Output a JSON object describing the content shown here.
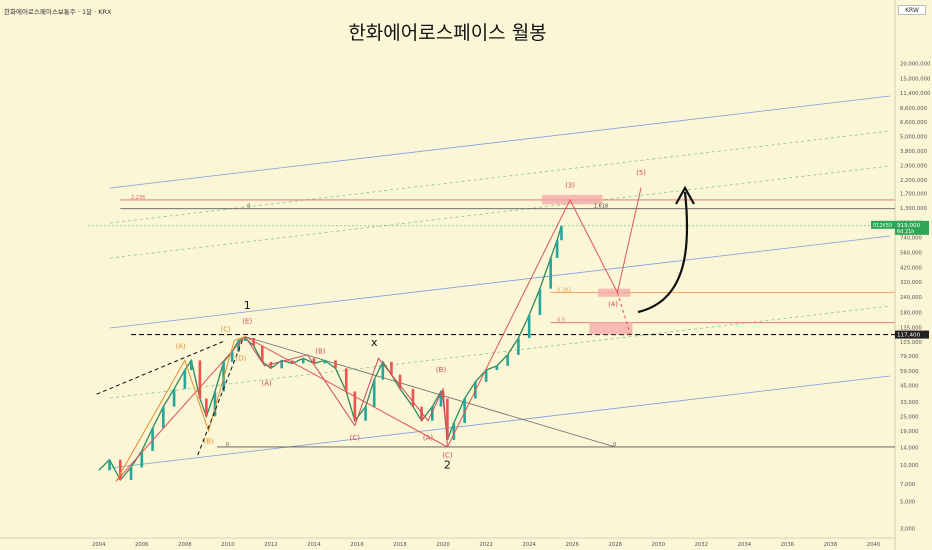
{
  "header": {
    "symbol": "한화에어로스페이스보통주 · 1달 · KRX",
    "title": "한화에어로스페이스 월봉",
    "currency": "KRW"
  },
  "price_tag": {
    "label": "012450",
    "price": "919,000",
    "countdown": "6d 21h"
  },
  "ref_tag": {
    "price": "117,400"
  },
  "chart_data": {
    "type": "line",
    "title": "한화에어로스페이스 월봉",
    "xlabel": "",
    "ylabel": "",
    "yscale": "log",
    "xlim": [
      2003.5,
      2041
    ],
    "ylim": [
      2500,
      60000000
    ],
    "x_ticks": [
      "2004",
      "2006",
      "2008",
      "2010",
      "2012",
      "2014",
      "2016",
      "2018",
      "2020",
      "2022",
      "2024",
      "2026",
      "2028",
      "2030",
      "2032",
      "2034",
      "2036",
      "2038",
      "2040"
    ],
    "y_ticks": [
      "20,000,000",
      "15,000,000",
      "11,400,000",
      "8,600,000",
      "6,600,000",
      "5,000,000",
      "3,800,000",
      "2,900,000",
      "2,200,000",
      "1,700,000",
      "1,300,000",
      "980,000",
      "740,000",
      "560,000",
      "420,000",
      "320,000",
      "240,000",
      "180,000",
      "135,000",
      "103,000",
      "79,000",
      "59,000",
      "45,000",
      "33,000",
      "25,000",
      "19,000",
      "14,000",
      "10,000",
      "7,000",
      "5,000",
      "3,000"
    ],
    "price_path": [
      [
        2004.0,
        9000
      ],
      [
        2004.5,
        11000
      ],
      [
        2005.0,
        7500
      ],
      [
        2005.5,
        9500
      ],
      [
        2006.0,
        13000
      ],
      [
        2006.5,
        20000
      ],
      [
        2007.0,
        30000
      ],
      [
        2007.5,
        42000
      ],
      [
        2008.0,
        60000
      ],
      [
        2008.3,
        72000
      ],
      [
        2008.7,
        35000
      ],
      [
        2009.0,
        25000
      ],
      [
        2009.4,
        40000
      ],
      [
        2009.8,
        70000
      ],
      [
        2010.2,
        85000
      ],
      [
        2010.5,
        105000
      ],
      [
        2010.8,
        110000
      ],
      [
        2011.2,
        95000
      ],
      [
        2011.6,
        70000
      ],
      [
        2012.0,
        62000
      ],
      [
        2012.5,
        72000
      ],
      [
        2013.0,
        68000
      ],
      [
        2013.5,
        75000
      ],
      [
        2014.0,
        68000
      ],
      [
        2014.5,
        72000
      ],
      [
        2015.0,
        62000
      ],
      [
        2015.5,
        40000
      ],
      [
        2015.9,
        23000
      ],
      [
        2016.4,
        30000
      ],
      [
        2016.8,
        50000
      ],
      [
        2017.2,
        70000
      ],
      [
        2017.6,
        55000
      ],
      [
        2018.0,
        42000
      ],
      [
        2018.6,
        30000
      ],
      [
        2019.0,
        23000
      ],
      [
        2019.5,
        30000
      ],
      [
        2019.9,
        40000
      ],
      [
        2020.0,
        35000
      ],
      [
        2020.2,
        16000
      ],
      [
        2020.5,
        22000
      ],
      [
        2021.0,
        35000
      ],
      [
        2021.5,
        48000
      ],
      [
        2022.0,
        60000
      ],
      [
        2022.5,
        65000
      ],
      [
        2023.0,
        80000
      ],
      [
        2023.5,
        110000
      ],
      [
        2024.0,
        170000
      ],
      [
        2024.5,
        280000
      ],
      [
        2025.0,
        500000
      ],
      [
        2025.3,
        700000
      ],
      [
        2025.5,
        919000
      ]
    ],
    "waves": [
      {
        "name": "primary",
        "points": [
          [
            2004.8,
            7300
          ],
          [
            2010.8,
            113000
          ],
          [
            2020.2,
            14000
          ],
          [
            2025.9,
            1500000
          ],
          [
            2028.1,
            260000
          ],
          [
            2029.2,
            1900000
          ]
        ]
      },
      {
        "name": "wave1-sub",
        "points": [
          [
            2004.8,
            7300
          ],
          [
            2008.0,
            72000
          ],
          [
            2009.1,
            19000
          ],
          [
            2010.3,
            105000
          ],
          [
            2010.8,
            113000
          ]
        ]
      },
      {
        "name": "wave2-sub",
        "points": [
          [
            2010.8,
            113000
          ],
          [
            2011.7,
            65000
          ],
          [
            2013.7,
            80000
          ],
          [
            2015.9,
            21000
          ],
          [
            2017.0,
            75000
          ],
          [
            2019.3,
            23000
          ],
          [
            2020.0,
            42000
          ],
          [
            2020.2,
            14000
          ]
        ]
      }
    ],
    "labels": [
      {
        "text": "1",
        "x": 2010.9,
        "y": 190000
      },
      {
        "text": "2",
        "x": 2020.2,
        "y": 9300
      },
      {
        "text": "x",
        "x": 2016.8,
        "y": 95000
      },
      {
        "text": "(A)",
        "x": 2007.8,
        "y": 90000
      },
      {
        "text": "(B)",
        "x": 2009.1,
        "y": 15000
      },
      {
        "text": "(C)",
        "x": 2009.9,
        "y": 125000
      },
      {
        "text": "(D)",
        "x": 2010.6,
        "y": 72000
      },
      {
        "text": "(E)",
        "x": 2010.9,
        "y": 145000
      },
      {
        "text": "(A)",
        "x": 2011.8,
        "y": 45000
      },
      {
        "text": "(B)",
        "x": 2014.3,
        "y": 82000
      },
      {
        "text": "(C)",
        "x": 2015.9,
        "y": 16000
      },
      {
        "text": "(A)",
        "x": 2019.3,
        "y": 16000
      },
      {
        "text": "(B)",
        "x": 2019.9,
        "y": 58000
      },
      {
        "text": "(C)",
        "x": 2020.2,
        "y": 11500
      },
      {
        "text": "(3)",
        "x": 2025.9,
        "y": 1900000
      },
      {
        "text": "(4)",
        "x": 2027.9,
        "y": 200000
      },
      {
        "text": "(5)",
        "x": 2029.2,
        "y": 2400000
      }
    ],
    "levels": [
      {
        "name": "2.236",
        "y": 1500000
      },
      {
        "name": "1.618",
        "y": 1270000
      },
      {
        "name": "0.382",
        "y": 260000
      },
      {
        "name": "0.5",
        "y": 147000
      },
      {
        "name": "0",
        "y": 14000
      },
      {
        "name": "117,400",
        "y": 117400
      }
    ],
    "fib_texts": [
      "2.236",
      "0",
      "1.618",
      "0.382",
      "0.5",
      "0",
      "0"
    ],
    "forecast_dashed": [
      [
        2028.1,
        260000
      ],
      [
        2028.7,
        118000
      ]
    ]
  }
}
